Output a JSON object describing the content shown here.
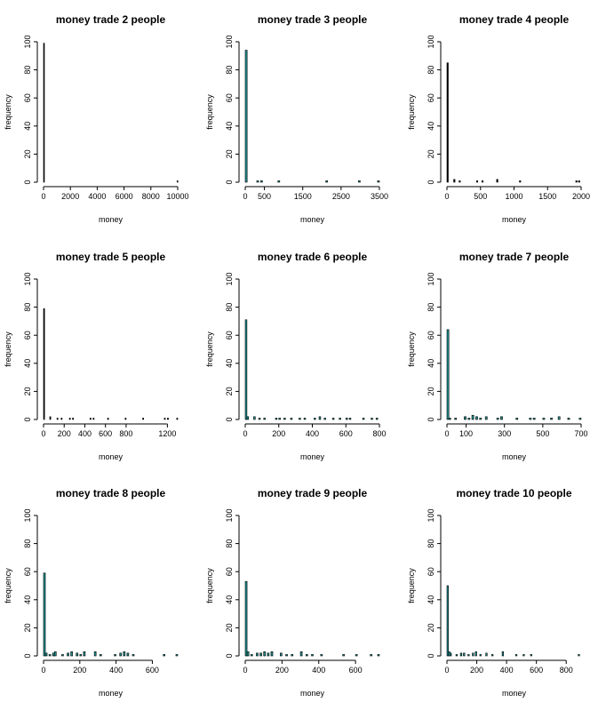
{
  "chart_data": [
    {
      "type": "bar",
      "title": "money trade 2 people",
      "xlabel": "money",
      "ylabel": "frequency",
      "xlim": [
        0,
        10000
      ],
      "ylim": [
        0,
        100
      ],
      "xticks": [
        0,
        2000,
        4000,
        6000,
        8000,
        10000
      ],
      "yticks": [
        0,
        20,
        40,
        60,
        80,
        100
      ],
      "bar_color": "#000000",
      "bins": [
        {
          "x": 0,
          "x2": 50,
          "y": 99
        },
        {
          "x": 9950,
          "x2": 10000,
          "y": 1
        }
      ]
    },
    {
      "type": "bar",
      "title": "money trade 3 people",
      "xlabel": "money",
      "ylabel": "frequency",
      "xlim": [
        0,
        3500
      ],
      "ylim": [
        0,
        100
      ],
      "xticks": [
        0,
        500,
        1500,
        2500,
        3500
      ],
      "yticks": [
        0,
        20,
        40,
        60,
        80,
        100
      ],
      "bar_color": "#1f8f8f",
      "bins": [
        {
          "x": 0,
          "x2": 50,
          "y": 94
        },
        {
          "x": 300,
          "x2": 350,
          "y": 1
        },
        {
          "x": 400,
          "x2": 450,
          "y": 1
        },
        {
          "x": 850,
          "x2": 900,
          "y": 1
        },
        {
          "x": 2100,
          "x2": 2150,
          "y": 1
        },
        {
          "x": 2950,
          "x2": 3000,
          "y": 1
        },
        {
          "x": 3450,
          "x2": 3500,
          "y": 1
        }
      ]
    },
    {
      "type": "bar",
      "title": "money trade 4 people",
      "xlabel": "money",
      "ylabel": "frequency",
      "xlim": [
        0,
        2000
      ],
      "ylim": [
        0,
        100
      ],
      "xticks": [
        0,
        500,
        1000,
        1500,
        2000
      ],
      "yticks": [
        0,
        20,
        40,
        60,
        80,
        100
      ],
      "bar_color": "#000000",
      "bins": [
        {
          "x": 0,
          "x2": 20,
          "y": 85
        },
        {
          "x": 100,
          "x2": 120,
          "y": 2
        },
        {
          "x": 180,
          "x2": 200,
          "y": 1
        },
        {
          "x": 440,
          "x2": 460,
          "y": 1
        },
        {
          "x": 520,
          "x2": 540,
          "y": 1
        },
        {
          "x": 740,
          "x2": 760,
          "y": 2
        },
        {
          "x": 1080,
          "x2": 1100,
          "y": 1
        },
        {
          "x": 1920,
          "x2": 1940,
          "y": 1
        },
        {
          "x": 1960,
          "x2": 1980,
          "y": 1
        }
      ]
    },
    {
      "type": "bar",
      "title": "money trade 5 people",
      "xlabel": "money",
      "ylabel": "frequency",
      "xlim": [
        0,
        1300
      ],
      "ylim": [
        0,
        100
      ],
      "xticks": [
        0,
        200,
        400,
        600,
        800,
        1200
      ],
      "yticks": [
        0,
        20,
        40,
        60,
        80,
        100
      ],
      "bar_color": "#000000",
      "bins": [
        {
          "x": 0,
          "x2": 10,
          "y": 79
        },
        {
          "x": 60,
          "x2": 70,
          "y": 2
        },
        {
          "x": 130,
          "x2": 140,
          "y": 1
        },
        {
          "x": 170,
          "x2": 180,
          "y": 1
        },
        {
          "x": 250,
          "x2": 260,
          "y": 1
        },
        {
          "x": 280,
          "x2": 290,
          "y": 1
        },
        {
          "x": 450,
          "x2": 460,
          "y": 1
        },
        {
          "x": 480,
          "x2": 490,
          "y": 1
        },
        {
          "x": 620,
          "x2": 630,
          "y": 1
        },
        {
          "x": 790,
          "x2": 800,
          "y": 1
        },
        {
          "x": 960,
          "x2": 970,
          "y": 1
        },
        {
          "x": 1170,
          "x2": 1180,
          "y": 1
        },
        {
          "x": 1200,
          "x2": 1210,
          "y": 1
        },
        {
          "x": 1290,
          "x2": 1300,
          "y": 1
        }
      ]
    },
    {
      "type": "bar",
      "title": "money trade 6 people",
      "xlabel": "money",
      "ylabel": "frequency",
      "xlim": [
        0,
        800
      ],
      "ylim": [
        0,
        100
      ],
      "xticks": [
        0,
        200,
        400,
        600,
        800
      ],
      "yticks": [
        0,
        20,
        40,
        60,
        80,
        100
      ],
      "bar_color": "#1f8f8f",
      "bins": [
        {
          "x": 0,
          "x2": 10,
          "y": 71
        },
        {
          "x": 10,
          "x2": 20,
          "y": 2
        },
        {
          "x": 50,
          "x2": 60,
          "y": 2
        },
        {
          "x": 80,
          "x2": 90,
          "y": 1
        },
        {
          "x": 110,
          "x2": 120,
          "y": 1
        },
        {
          "x": 180,
          "x2": 190,
          "y": 1
        },
        {
          "x": 200,
          "x2": 210,
          "y": 1
        },
        {
          "x": 230,
          "x2": 240,
          "y": 1
        },
        {
          "x": 270,
          "x2": 280,
          "y": 1
        },
        {
          "x": 320,
          "x2": 330,
          "y": 1
        },
        {
          "x": 350,
          "x2": 360,
          "y": 1
        },
        {
          "x": 410,
          "x2": 420,
          "y": 1
        },
        {
          "x": 440,
          "x2": 450,
          "y": 2
        },
        {
          "x": 470,
          "x2": 480,
          "y": 1
        },
        {
          "x": 520,
          "x2": 530,
          "y": 1
        },
        {
          "x": 560,
          "x2": 570,
          "y": 1
        },
        {
          "x": 600,
          "x2": 610,
          "y": 1
        },
        {
          "x": 620,
          "x2": 630,
          "y": 1
        },
        {
          "x": 700,
          "x2": 710,
          "y": 1
        },
        {
          "x": 750,
          "x2": 760,
          "y": 1
        },
        {
          "x": 780,
          "x2": 790,
          "y": 1
        }
      ]
    },
    {
      "type": "bar",
      "title": "money trade 7 people",
      "xlabel": "money",
      "ylabel": "frequency",
      "xlim": [
        0,
        700
      ],
      "ylim": [
        0,
        100
      ],
      "xticks": [
        0,
        100,
        300,
        500,
        700
      ],
      "yticks": [
        0,
        20,
        40,
        60,
        80,
        100
      ],
      "bar_color": "#1f8f8f",
      "bins": [
        {
          "x": 0,
          "x2": 10,
          "y": 64
        },
        {
          "x": 10,
          "x2": 20,
          "y": 1
        },
        {
          "x": 40,
          "x2": 50,
          "y": 1
        },
        {
          "x": 90,
          "x2": 100,
          "y": 2
        },
        {
          "x": 110,
          "x2": 120,
          "y": 1
        },
        {
          "x": 130,
          "x2": 140,
          "y": 3
        },
        {
          "x": 150,
          "x2": 160,
          "y": 2
        },
        {
          "x": 170,
          "x2": 180,
          "y": 1
        },
        {
          "x": 200,
          "x2": 210,
          "y": 2
        },
        {
          "x": 260,
          "x2": 270,
          "y": 1
        },
        {
          "x": 280,
          "x2": 290,
          "y": 2
        },
        {
          "x": 360,
          "x2": 370,
          "y": 1
        },
        {
          "x": 430,
          "x2": 440,
          "y": 1
        },
        {
          "x": 450,
          "x2": 460,
          "y": 1
        },
        {
          "x": 500,
          "x2": 510,
          "y": 1
        },
        {
          "x": 540,
          "x2": 550,
          "y": 1
        },
        {
          "x": 580,
          "x2": 590,
          "y": 2
        },
        {
          "x": 630,
          "x2": 640,
          "y": 1
        },
        {
          "x": 690,
          "x2": 700,
          "y": 1
        }
      ]
    },
    {
      "type": "bar",
      "title": "money trade 8 people",
      "xlabel": "money",
      "ylabel": "frequency",
      "xlim": [
        0,
        740
      ],
      "ylim": [
        0,
        100
      ],
      "xticks": [
        0,
        200,
        400,
        600
      ],
      "yticks": [
        0,
        20,
        40,
        60,
        80,
        100
      ],
      "bar_color": "#1f8f8f",
      "bins": [
        {
          "x": 0,
          "x2": 10,
          "y": 59
        },
        {
          "x": 10,
          "x2": 20,
          "y": 2
        },
        {
          "x": 30,
          "x2": 40,
          "y": 1
        },
        {
          "x": 50,
          "x2": 60,
          "y": 2
        },
        {
          "x": 60,
          "x2": 70,
          "y": 3
        },
        {
          "x": 100,
          "x2": 110,
          "y": 1
        },
        {
          "x": 130,
          "x2": 140,
          "y": 2
        },
        {
          "x": 150,
          "x2": 160,
          "y": 3
        },
        {
          "x": 180,
          "x2": 190,
          "y": 2
        },
        {
          "x": 200,
          "x2": 210,
          "y": 1
        },
        {
          "x": 220,
          "x2": 230,
          "y": 3
        },
        {
          "x": 280,
          "x2": 290,
          "y": 3
        },
        {
          "x": 310,
          "x2": 320,
          "y": 1
        },
        {
          "x": 390,
          "x2": 400,
          "y": 1
        },
        {
          "x": 420,
          "x2": 430,
          "y": 2
        },
        {
          "x": 440,
          "x2": 450,
          "y": 3
        },
        {
          "x": 460,
          "x2": 470,
          "y": 2
        },
        {
          "x": 490,
          "x2": 500,
          "y": 1
        },
        {
          "x": 660,
          "x2": 670,
          "y": 1
        },
        {
          "x": 730,
          "x2": 740,
          "y": 1
        }
      ]
    },
    {
      "type": "bar",
      "title": "money trade 9 people",
      "xlabel": "money",
      "ylabel": "frequency",
      "xlim": [
        0,
        730
      ],
      "ylim": [
        0,
        100
      ],
      "xticks": [
        0,
        200,
        400,
        600
      ],
      "yticks": [
        0,
        20,
        40,
        60,
        80,
        100
      ],
      "bar_color": "#1f8f8f",
      "bins": [
        {
          "x": 0,
          "x2": 10,
          "y": 53
        },
        {
          "x": 10,
          "x2": 20,
          "y": 3
        },
        {
          "x": 30,
          "x2": 40,
          "y": 1
        },
        {
          "x": 60,
          "x2": 70,
          "y": 2
        },
        {
          "x": 80,
          "x2": 90,
          "y": 2
        },
        {
          "x": 100,
          "x2": 110,
          "y": 3
        },
        {
          "x": 120,
          "x2": 130,
          "y": 2
        },
        {
          "x": 140,
          "x2": 150,
          "y": 3
        },
        {
          "x": 190,
          "x2": 200,
          "y": 2
        },
        {
          "x": 220,
          "x2": 230,
          "y": 1
        },
        {
          "x": 250,
          "x2": 260,
          "y": 1
        },
        {
          "x": 300,
          "x2": 310,
          "y": 3
        },
        {
          "x": 330,
          "x2": 340,
          "y": 1
        },
        {
          "x": 360,
          "x2": 370,
          "y": 1
        },
        {
          "x": 410,
          "x2": 420,
          "y": 1
        },
        {
          "x": 530,
          "x2": 540,
          "y": 1
        },
        {
          "x": 600,
          "x2": 610,
          "y": 1
        },
        {
          "x": 680,
          "x2": 690,
          "y": 1
        },
        {
          "x": 720,
          "x2": 730,
          "y": 1
        }
      ]
    },
    {
      "type": "bar",
      "title": "money trade 10 people",
      "xlabel": "money",
      "ylabel": "frequency",
      "xlim": [
        0,
        900
      ],
      "ylim": [
        0,
        100
      ],
      "xticks": [
        0,
        200,
        400,
        600,
        800
      ],
      "yticks": [
        0,
        20,
        40,
        60,
        80,
        100
      ],
      "bar_color": "#1f8f8f",
      "bins": [
        {
          "x": 0,
          "x2": 10,
          "y": 50
        },
        {
          "x": 10,
          "x2": 20,
          "y": 3
        },
        {
          "x": 20,
          "x2": 30,
          "y": 2
        },
        {
          "x": 60,
          "x2": 70,
          "y": 1
        },
        {
          "x": 90,
          "x2": 100,
          "y": 2
        },
        {
          "x": 110,
          "x2": 120,
          "y": 2
        },
        {
          "x": 140,
          "x2": 150,
          "y": 1
        },
        {
          "x": 170,
          "x2": 180,
          "y": 2
        },
        {
          "x": 190,
          "x2": 200,
          "y": 3
        },
        {
          "x": 220,
          "x2": 230,
          "y": 1
        },
        {
          "x": 260,
          "x2": 270,
          "y": 2
        },
        {
          "x": 300,
          "x2": 310,
          "y": 1
        },
        {
          "x": 370,
          "x2": 380,
          "y": 3
        },
        {
          "x": 460,
          "x2": 470,
          "y": 1
        },
        {
          "x": 510,
          "x2": 520,
          "y": 1
        },
        {
          "x": 560,
          "x2": 570,
          "y": 1
        },
        {
          "x": 880,
          "x2": 890,
          "y": 1
        }
      ]
    }
  ]
}
